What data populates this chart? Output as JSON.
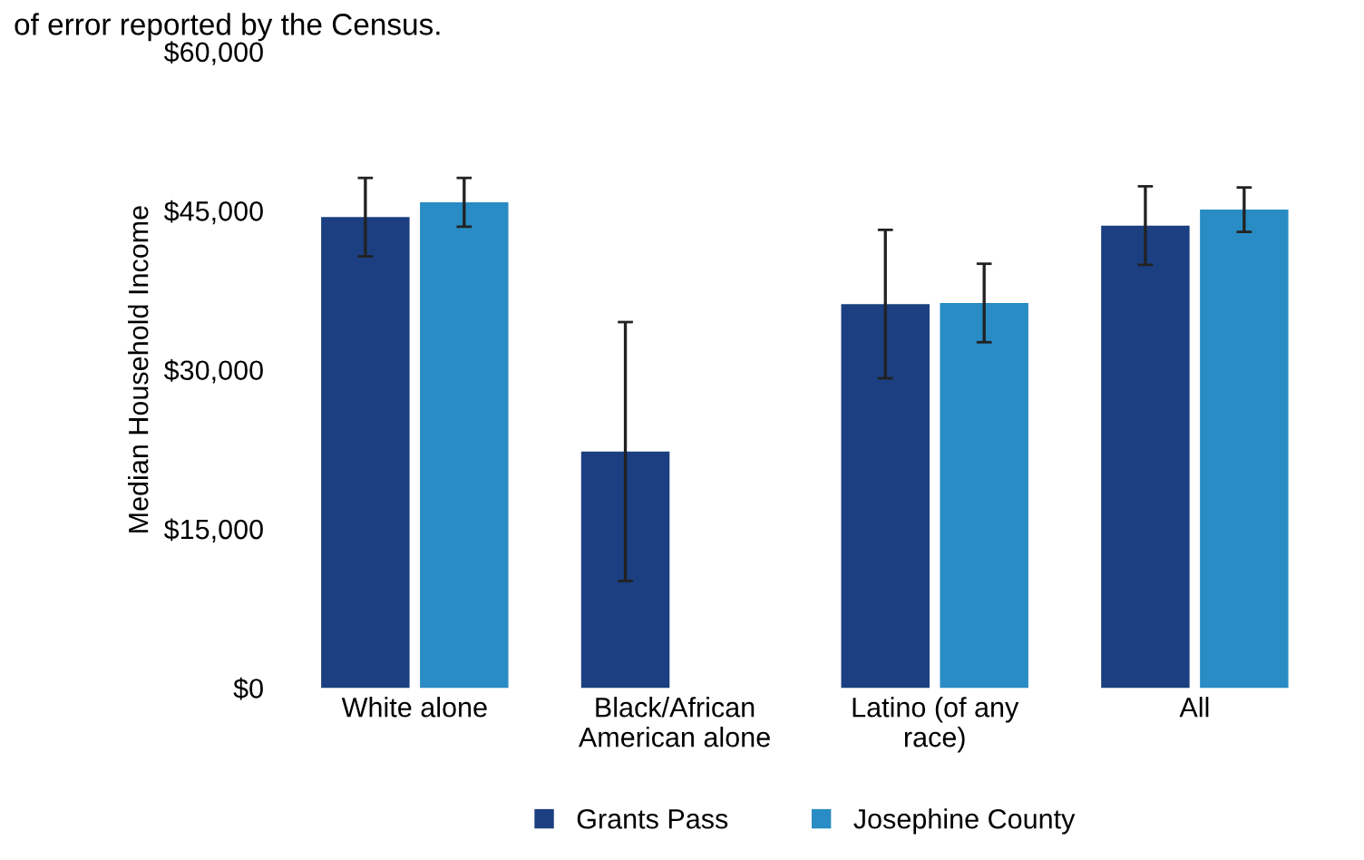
{
  "chart_data": {
    "type": "bar",
    "ylabel": "Median Household Income",
    "categories": [
      "White alone",
      "Black/African\nAmerican alone",
      "Latino (of any\nrace)",
      "All"
    ],
    "series": [
      {
        "name": "Grants Pass",
        "color": "#1b3f80",
        "values": [
          44400,
          22300,
          36200,
          43600
        ],
        "errors": [
          3700,
          12200,
          7000,
          3700
        ]
      },
      {
        "name": "Josephine County",
        "color": "#2a8cc4",
        "values": [
          45800,
          null,
          36300,
          45100
        ],
        "errors": [
          2300,
          null,
          3700,
          2100
        ]
      }
    ],
    "ylim": [
      0,
      60000
    ],
    "yticks": [
      {
        "value": 0,
        "label": "$0"
      },
      {
        "value": 15000,
        "label": "$15,000"
      },
      {
        "value": 30000,
        "label": "$30,000"
      },
      {
        "value": 45000,
        "label": "$45,000"
      },
      {
        "value": 60000,
        "label": "$60,000"
      }
    ],
    "grid": false,
    "legend": "bottom",
    "annotations": [
      "of error reported by the Census."
    ]
  }
}
